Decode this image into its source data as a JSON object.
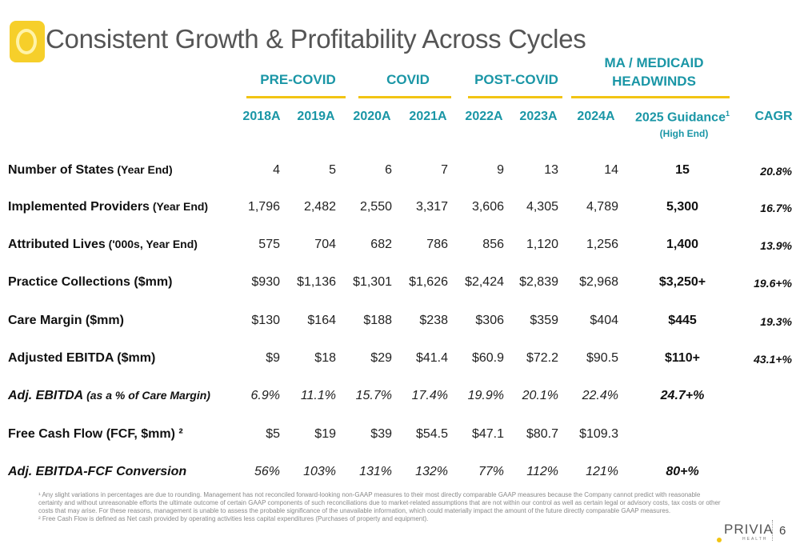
{
  "title": "Consistent Growth & Profitability Across Cycles",
  "eras": [
    "PRE-COVID",
    "COVID",
    "POST-COVID",
    "MA / MEDICAID",
    "HEADWINDS"
  ],
  "columns": [
    "2018A",
    "2019A",
    "2020A",
    "2021A",
    "2022A",
    "2023A",
    "2024A",
    "2025 Guidance",
    "(High End)",
    "CAGR"
  ],
  "guidance_sup": "1",
  "rows": [
    {
      "label": "Number of States",
      "sub": " (Year End)",
      "values": [
        "4",
        "5",
        "6",
        "7",
        "9",
        "13",
        "14"
      ],
      "guidance": "15",
      "cagr": "20.8%"
    },
    {
      "label": "Implemented Providers",
      "sub": " (Year End)",
      "values": [
        "1,796",
        "2,482",
        "2,550",
        "3,317",
        "3,606",
        "4,305",
        "4,789"
      ],
      "guidance": "5,300",
      "cagr": "16.7%"
    },
    {
      "label": "Attributed Lives",
      "sub": " ('000s, Year End)",
      "values": [
        "575",
        "704",
        "682",
        "786",
        "856",
        "1,120",
        "1,256"
      ],
      "guidance": "1,400",
      "cagr": "13.9%"
    },
    {
      "label": "Practice Collections ($mm)",
      "sub": "",
      "values": [
        "$930",
        "$1,136",
        "$1,301",
        "$1,626",
        "$2,424",
        "$2,839",
        "$2,968"
      ],
      "guidance": "$3,250+",
      "cagr": "19.6+%"
    },
    {
      "label": "Care Margin ($mm)",
      "sub": "",
      "values": [
        "$130",
        "$164",
        "$188",
        "$238",
        "$306",
        "$359",
        "$404"
      ],
      "guidance": "$445",
      "cagr": "19.3%"
    },
    {
      "label": "Adjusted EBITDA ($mm)",
      "sub": "",
      "values": [
        "$9",
        "$18",
        "$29",
        "$41.4",
        "$60.9",
        "$72.2",
        "$90.5"
      ],
      "guidance": "$110+",
      "cagr": "43.1+%"
    },
    {
      "label": "Adj. EBITDA",
      "sub": " (as a % of Care Margin)",
      "values": [
        "6.9%",
        "11.1%",
        "15.7%",
        "17.4%",
        "19.9%",
        "20.1%",
        "22.4%"
      ],
      "guidance": "24.7+%",
      "cagr": ""
    },
    {
      "label": "Free Cash Flow (FCF, $mm) ²",
      "sub": "",
      "values": [
        "$5",
        "$19",
        "$39",
        "$54.5",
        "$47.1",
        "$80.7",
        "$109.3"
      ],
      "guidance": "",
      "cagr": ""
    },
    {
      "label": "Adj. EBITDA-FCF Conversion",
      "sub": "",
      "values": [
        "56%",
        "103%",
        "131%",
        "132%",
        "77%",
        "112%",
        "121%"
      ],
      "guidance": "80+%",
      "cagr": ""
    }
  ],
  "footnotes": [
    "¹ Any slight variations in percentages are due to rounding. Management has not reconciled forward-looking non-GAAP measures to their most directly comparable GAAP measures because the Company cannot predict with reasonable certainty and without unreasonable efforts the ultimate outcome of certain GAAP components of such reconciliations due to market-related assumptions that are not within our control as well as certain legal or advisory costs, tax costs or other costs that may arise. For these reasons, management is unable to assess the probable significance of the unavailable information, which could materially impact the amount of the future directly comparable GAAP measures.",
    "² Free Cash Flow is defined as Net cash provided by operating activities less capital expenditures (Purchases of property and equipment)."
  ],
  "brand": "PRIVIA",
  "brand_sub": "HEALTH",
  "page_number": "6",
  "colors": {
    "teal": "#1a96a6",
    "gold": "#f2c413",
    "title_gray": "#555555"
  }
}
